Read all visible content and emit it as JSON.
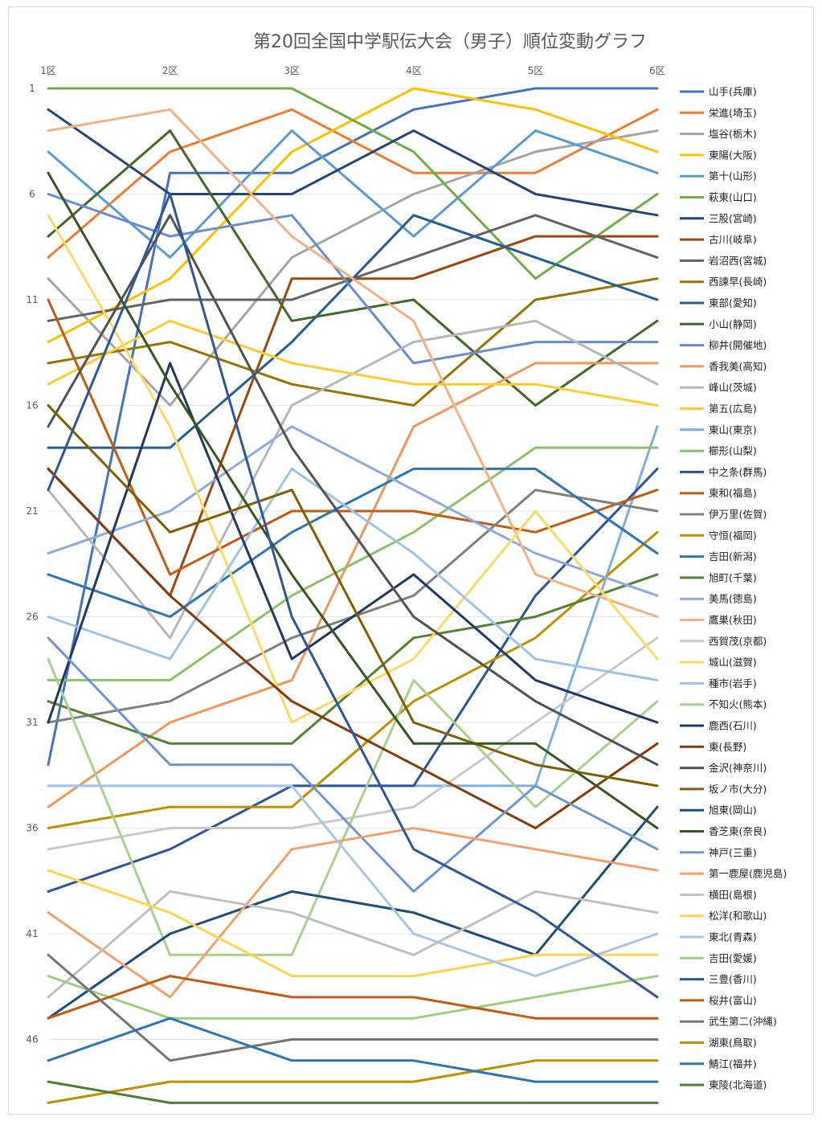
{
  "chart_data": {
    "type": "line",
    "title": "第20回全国中学駅伝大会（男子）順位変動グラフ",
    "categories": [
      "1区",
      "2区",
      "3区",
      "4区",
      "5区",
      "6区"
    ],
    "y_ticks": [
      1,
      6,
      11,
      16,
      21,
      26,
      31,
      36,
      41,
      46
    ],
    "ylim": [
      1,
      48
    ],
    "y_reversed": true,
    "grid": true,
    "legend_position": "right",
    "series": [
      {
        "name": "山手(兵庫)",
        "color": "#4472c4",
        "values": [
          33,
          5,
          5,
          2,
          1,
          1
        ]
      },
      {
        "name": "栄進(埼玉)",
        "color": "#ed7d31",
        "values": [
          9,
          4,
          2,
          5,
          5,
          2
        ]
      },
      {
        "name": "塩谷(栃木)",
        "color": "#a5a5a5",
        "values": [
          10,
          16,
          9,
          6,
          4,
          3
        ]
      },
      {
        "name": "東陽(大阪)",
        "color": "#ffc000",
        "values": [
          13,
          10,
          4,
          1,
          2,
          4
        ]
      },
      {
        "name": "第十(山形)",
        "color": "#5b9bd5",
        "values": [
          4,
          9,
          3,
          8,
          3,
          5
        ]
      },
      {
        "name": "萩東(山口)",
        "color": "#70ad47",
        "values": [
          1,
          1,
          1,
          4,
          10,
          6
        ]
      },
      {
        "name": "三股(宮崎)",
        "color": "#264478",
        "values": [
          2,
          6,
          6,
          3,
          6,
          7
        ]
      },
      {
        "name": "古川(岐阜)",
        "color": "#9e480e",
        "values": [
          19,
          25,
          10,
          10,
          8,
          8
        ]
      },
      {
        "name": "岩沼西(宮城)",
        "color": "#636363",
        "values": [
          12,
          11,
          11,
          9,
          7,
          9
        ]
      },
      {
        "name": "西諫早(長崎)",
        "color": "#997300",
        "values": [
          14,
          13,
          15,
          16,
          11,
          10
        ]
      },
      {
        "name": "東部(愛知)",
        "color": "#255e91",
        "values": [
          18,
          18,
          13,
          7,
          9,
          11
        ]
      },
      {
        "name": "小山(静岡)",
        "color": "#43682b",
        "values": [
          8,
          3,
          12,
          11,
          16,
          12
        ]
      },
      {
        "name": "柳井(開催地)",
        "color": "#698ed0",
        "values": [
          6,
          8,
          7,
          14,
          13,
          13
        ]
      },
      {
        "name": "香我美(高知)",
        "color": "#f1975a",
        "values": [
          35,
          31,
          29,
          17,
          14,
          14
        ]
      },
      {
        "name": "峰山(茨城)",
        "color": "#b7b7b7",
        "values": [
          20,
          27,
          16,
          13,
          12,
          15
        ]
      },
      {
        "name": "第五(広島)",
        "color": "#ffcd33",
        "values": [
          15,
          12,
          14,
          15,
          15,
          16
        ]
      },
      {
        "name": "東山(東京)",
        "color": "#7cafdd",
        "values": [
          34,
          34,
          34,
          34,
          34,
          17
        ]
      },
      {
        "name": "櫛形(山梨)",
        "color": "#8cc168",
        "values": [
          29,
          29,
          25,
          22,
          18,
          18
        ]
      },
      {
        "name": "中之条(群馬)",
        "color": "#2e5597",
        "values": [
          39,
          37,
          34,
          34,
          25,
          19
        ]
      },
      {
        "name": "東和(福島)",
        "color": "#c55a11",
        "values": [
          11,
          24,
          21,
          21,
          22,
          20
        ]
      },
      {
        "name": "伊万里(佐賀)",
        "color": "#7f7f7f",
        "values": [
          31,
          30,
          27,
          25,
          20,
          21
        ]
      },
      {
        "name": "守恒(福岡)",
        "color": "#c09000",
        "values": [
          36,
          35,
          35,
          30,
          27,
          22
        ]
      },
      {
        "name": "吉田(新潟)",
        "color": "#2e75b6",
        "values": [
          24,
          26,
          22,
          19,
          19,
          23
        ]
      },
      {
        "name": "旭町(千葉)",
        "color": "#548235",
        "values": [
          30,
          32,
          32,
          27,
          26,
          24
        ]
      },
      {
        "name": "美馬(徳島)",
        "color": "#8faadc",
        "values": [
          23,
          21,
          17,
          20,
          23,
          25
        ]
      },
      {
        "name": "鷹巣(秋田)",
        "color": "#f4b183",
        "values": [
          3,
          2,
          8,
          12,
          24,
          26
        ]
      },
      {
        "name": "西賀茂(京都)",
        "color": "#c9c9c9",
        "values": [
          37,
          36,
          36,
          35,
          31,
          27
        ]
      },
      {
        "name": "城山(滋賀)",
        "color": "#ffd966",
        "values": [
          7,
          17,
          31,
          28,
          21,
          28
        ]
      },
      {
        "name": "種市(岩手)",
        "color": "#9dc3e6",
        "values": [
          26,
          28,
          19,
          23,
          28,
          29
        ]
      },
      {
        "name": "不知火(熊本)",
        "color": "#a9d18e",
        "values": [
          28,
          42,
          42,
          29,
          35,
          30
        ]
      },
      {
        "name": "鹿西(石川)",
        "color": "#203864",
        "values": [
          31,
          14,
          28,
          24,
          29,
          31
        ]
      },
      {
        "name": "東(長野)",
        "color": "#843c0c",
        "values": [
          19,
          25,
          30,
          33,
          36,
          32
        ]
      },
      {
        "name": "金沢(神奈川)",
        "color": "#525252",
        "values": [
          17,
          7,
          18,
          26,
          30,
          33
        ]
      },
      {
        "name": "坂ノ市(大分)",
        "color": "#7f6000",
        "values": [
          16,
          22,
          20,
          31,
          33,
          34
        ]
      },
      {
        "name": "旭東(岡山)",
        "color": "#1f4e79",
        "values": [
          45,
          41,
          39,
          40,
          42,
          35
        ]
      },
      {
        "name": "香芝東(奈良)",
        "color": "#375623",
        "values": [
          5,
          15,
          24,
          32,
          32,
          36
        ]
      },
      {
        "name": "神戸(三重)",
        "color": "#7096d1",
        "values": [
          27,
          33,
          33,
          39,
          34,
          37
        ]
      },
      {
        "name": "第一鹿屋(鹿児島)",
        "color": "#f4a16c",
        "values": [
          40,
          44,
          37,
          36,
          37,
          38
        ]
      },
      {
        "name": "横田(島根)",
        "color": "#bfbfbf",
        "values": [
          44,
          39,
          40,
          42,
          39,
          40
        ]
      },
      {
        "name": "松洋(和歌山)",
        "color": "#ffd54f",
        "values": [
          38,
          40,
          43,
          43,
          42,
          42
        ]
      },
      {
        "name": "東北(青森)",
        "color": "#a7c6e8",
        "values": [
          34,
          34,
          34,
          41,
          43,
          41
        ]
      },
      {
        "name": "吉田(愛媛)",
        "color": "#9ccf7e",
        "values": [
          43,
          45,
          45,
          45,
          44,
          43
        ]
      },
      {
        "name": "三豊(香川)",
        "color": "#2f5699",
        "values": [
          20,
          6,
          26,
          37,
          40,
          44
        ]
      },
      {
        "name": "桜井(富山)",
        "color": "#c55a11",
        "values": [
          45,
          43,
          44,
          44,
          45,
          45
        ]
      },
      {
        "name": "武生第二(沖縄)",
        "color": "#757575",
        "values": [
          42,
          47,
          46,
          46,
          46,
          46
        ]
      },
      {
        "name": "湖東(鳥取)",
        "color": "#bf8f00",
        "values": [
          49,
          48,
          48,
          48,
          47,
          47
        ]
      },
      {
        "name": "鯖江(福井)",
        "color": "#2e75b6",
        "values": [
          47,
          45,
          47,
          47,
          48,
          48
        ]
      },
      {
        "name": "東陵(北海道)",
        "color": "#4f7f35",
        "values": [
          48,
          49,
          49,
          49,
          49,
          49
        ]
      }
    ]
  }
}
